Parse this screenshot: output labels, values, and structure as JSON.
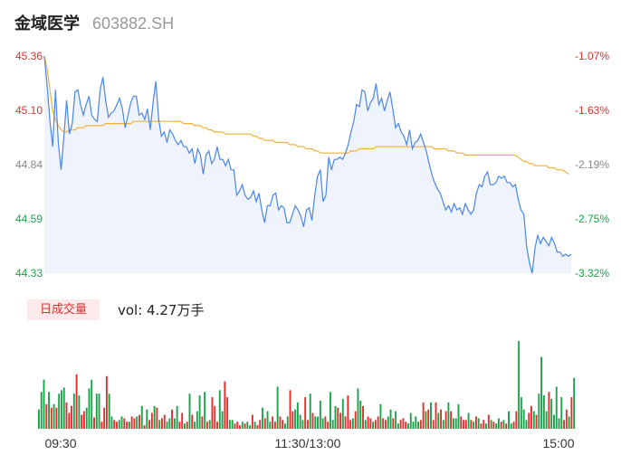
{
  "stock": {
    "name": "金域医学",
    "code": "603882.SH"
  },
  "volume": {
    "tab_label": "日成交量",
    "summary": "vol: 4.27万手"
  },
  "colors": {
    "price_line": "#4a86e8",
    "avg_line": "#f0b03c",
    "up": "#e0312e",
    "down": "#1aa34a",
    "fill": "#eef3fc"
  },
  "chart_data": [
    {
      "type": "line",
      "title": "",
      "y_left_ticks": [
        "45.36",
        "45.10",
        "44.84",
        "44.59",
        "44.33"
      ],
      "y_right_ticks": [
        "-1.07%",
        "-1.63%",
        "-2.19%",
        "-2.75%",
        "-3.32%"
      ],
      "x_ticks": [
        "09:30",
        "11:30/13:00",
        "15:00"
      ],
      "ylim": [
        44.33,
        45.36
      ],
      "series": [
        {
          "key": "price",
          "values": [
            45.36,
            45.22,
            45.05,
            44.93,
            45.2,
            44.95,
            44.82,
            44.98,
            45.15,
            44.99,
            45.04,
            45.19,
            45.2,
            45.13,
            45.08,
            45.13,
            45.17,
            45.08,
            45.06,
            45.05,
            45.2,
            45.26,
            45.15,
            45.07,
            45.09,
            45.1,
            45.13,
            45.16,
            45.11,
            45.02,
            45.08,
            45.14,
            45.17,
            45.17,
            45.08,
            45.09,
            45.06,
            45.11,
            45.01,
            45.14,
            45.24,
            45.06,
            44.98,
            45.0,
            44.95,
            45.01,
            44.99,
            44.96,
            44.94,
            44.96,
            44.93,
            44.93,
            44.9,
            44.92,
            44.85,
            44.92,
            44.89,
            44.8,
            44.89,
            44.91,
            44.85,
            44.87,
            44.93,
            44.87,
            44.87,
            44.84,
            44.87,
            44.82,
            44.82,
            44.7,
            44.72,
            44.75,
            44.7,
            44.68,
            44.69,
            44.72,
            44.67,
            44.71,
            44.63,
            44.57,
            44.65,
            44.65,
            44.7,
            44.71,
            44.63,
            44.65,
            44.64,
            44.57,
            44.57,
            44.61,
            44.65,
            44.63,
            44.6,
            44.55,
            44.63,
            44.64,
            44.58,
            44.7,
            44.79,
            44.82,
            44.67,
            44.7,
            44.88,
            44.82,
            44.87,
            44.87,
            44.88,
            44.87,
            44.9,
            44.94,
            45.0,
            45.05,
            45.13,
            45.12,
            45.2,
            45.19,
            45.1,
            45.14,
            45.16,
            45.23,
            45.13,
            45.16,
            45.1,
            45.15,
            45.19,
            45.11,
            45.02,
            45.04,
            45.0,
            44.98,
            44.94,
            45.01,
            44.92,
            44.95,
            44.96,
            44.99,
            44.95,
            44.91,
            44.85,
            44.8,
            44.76,
            44.73,
            44.71,
            44.67,
            44.63,
            44.65,
            44.62,
            44.66,
            44.63,
            44.64,
            44.61,
            44.66,
            44.63,
            44.61,
            44.63,
            44.71,
            44.75,
            44.74,
            44.79,
            44.81,
            44.75,
            44.75,
            44.76,
            44.79,
            44.78,
            44.79,
            44.76,
            44.76,
            44.74,
            44.75,
            44.68,
            44.63,
            44.61,
            44.46,
            44.38,
            44.33,
            44.45,
            44.51,
            44.47,
            44.5,
            44.48,
            44.46,
            44.5,
            44.47,
            44.43,
            44.43,
            44.41,
            44.42,
            44.41,
            44.42
          ]
        },
        {
          "key": "average",
          "values": [
            45.36,
            45.3,
            45.2,
            45.1,
            45.06,
            45.03,
            45.01,
            45.0,
            45.0,
            45.01,
            45.01,
            45.01,
            45.02,
            45.02,
            45.02,
            45.03,
            45.03,
            45.03,
            45.03,
            45.03,
            45.03,
            45.03,
            45.04,
            45.04,
            45.04,
            45.04,
            45.04,
            45.04,
            45.04,
            45.04,
            45.04,
            45.04,
            45.05,
            45.05,
            45.05,
            45.05,
            45.05,
            45.05,
            45.05,
            45.05,
            45.05,
            45.05,
            45.05,
            45.05,
            45.05,
            45.05,
            45.05,
            45.05,
            45.05,
            45.05,
            45.04,
            45.04,
            45.04,
            45.04,
            45.03,
            45.03,
            45.03,
            45.02,
            45.02,
            45.01,
            45.01,
            45.0,
            45.0,
            45.0,
            45.0,
            44.99,
            44.99,
            44.99,
            44.99,
            44.99,
            44.99,
            44.99,
            44.99,
            44.99,
            44.99,
            44.98,
            44.98,
            44.97,
            44.97,
            44.96,
            44.96,
            44.96,
            44.96,
            44.95,
            44.95,
            44.95,
            44.95,
            44.95,
            44.94,
            44.94,
            44.94,
            44.93,
            44.93,
            44.93,
            44.92,
            44.92,
            44.92,
            44.91,
            44.91,
            44.9,
            44.9,
            44.9,
            44.9,
            44.9,
            44.9,
            44.9,
            44.9,
            44.9,
            44.9,
            44.9,
            44.91,
            44.91,
            44.91,
            44.92,
            44.92,
            44.92,
            44.92,
            44.92,
            44.92,
            44.93,
            44.93,
            44.93,
            44.93,
            44.93,
            44.93,
            44.93,
            44.93,
            44.93,
            44.93,
            44.93,
            44.93,
            44.93,
            44.93,
            44.93,
            44.93,
            44.93,
            44.93,
            44.93,
            44.93,
            44.93,
            44.92,
            44.92,
            44.92,
            44.92,
            44.92,
            44.91,
            44.91,
            44.91,
            44.9,
            44.9,
            44.9,
            44.89,
            44.89,
            44.89,
            44.89,
            44.89,
            44.89,
            44.89,
            44.89,
            44.89,
            44.89,
            44.89,
            44.89,
            44.89,
            44.89,
            44.89,
            44.89,
            44.89,
            44.89,
            44.89,
            44.88,
            44.87,
            44.86,
            44.86,
            44.85,
            44.85,
            44.84,
            44.84,
            44.84,
            44.84,
            44.84,
            44.83,
            44.83,
            44.83,
            44.82,
            44.82,
            44.82,
            44.81,
            44.8
          ]
        }
      ]
    },
    {
      "type": "bar",
      "title": "",
      "values": [
        22,
        42,
        56,
        28,
        42,
        24,
        28,
        24,
        40,
        44,
        47,
        30,
        18,
        26,
        40,
        62,
        38,
        16,
        20,
        24,
        46,
        56,
        13,
        40,
        40,
        8,
        24,
        60,
        40,
        14,
        10,
        8,
        10,
        14,
        12,
        8,
        8,
        14,
        12,
        14,
        16,
        26,
        4,
        22,
        10,
        18,
        26,
        24,
        10,
        12,
        16,
        8,
        12,
        22,
        12,
        26,
        8,
        18,
        6,
        8,
        40,
        16,
        8,
        20,
        38,
        14,
        42,
        8,
        10,
        36,
        26,
        8,
        44,
        20,
        54,
        36,
        10,
        10,
        6,
        8,
        4,
        8,
        6,
        8,
        4,
        16,
        8,
        4,
        10,
        24,
        12,
        20,
        8,
        14,
        8,
        48,
        14,
        10,
        6,
        14,
        44,
        20,
        22,
        30,
        16,
        10,
        36,
        10,
        40,
        18,
        14,
        14,
        32,
        12,
        14,
        8,
        42,
        10,
        26,
        24,
        18,
        34,
        14,
        38,
        10,
        12,
        20,
        46,
        32,
        26,
        10,
        14,
        12,
        8,
        10,
        14,
        28,
        12,
        10,
        14,
        22,
        12,
        20,
        6,
        10,
        12,
        8,
        6,
        18,
        8,
        14,
        8,
        10,
        30,
        20,
        22,
        30,
        10,
        30,
        18,
        22,
        10,
        20,
        30,
        20,
        12,
        12,
        28,
        14,
        10,
        10,
        18,
        10,
        8,
        14,
        12,
        6,
        10,
        6,
        16,
        10,
        8,
        6,
        12,
        8,
        10,
        6,
        20,
        6,
        8,
        20,
        100,
        36,
        22,
        10,
        18,
        26,
        20,
        16,
        40,
        82,
        38,
        20,
        42,
        34,
        16,
        48,
        12,
        36,
        10,
        22,
        14,
        36,
        58
      ],
      "colors": [
        "g",
        "g",
        "g",
        "r",
        "g",
        "r",
        "g",
        "r",
        "g",
        "g",
        "g",
        "r",
        "r",
        "r",
        "g",
        "r",
        "g",
        "r",
        "r",
        "g",
        "g",
        "g",
        "r",
        "g",
        "g",
        "r",
        "r",
        "r",
        "g",
        "g",
        "r",
        "r",
        "g",
        "g",
        "r",
        "r",
        "g",
        "r",
        "r",
        "g",
        "r",
        "g",
        "r",
        "g",
        "r",
        "r",
        "g",
        "r",
        "g",
        "r",
        "r",
        "g",
        "g",
        "r",
        "g",
        "g",
        "r",
        "r",
        "g",
        "r",
        "g",
        "r",
        "g",
        "g",
        "g",
        "r",
        "g",
        "r",
        "g",
        "r",
        "r",
        "r",
        "g",
        "g",
        "r",
        "r",
        "g",
        "g",
        "r",
        "r",
        "r",
        "g",
        "r",
        "g",
        "g",
        "r",
        "g",
        "r",
        "r",
        "g",
        "r",
        "g",
        "g",
        "r",
        "r",
        "g",
        "r",
        "r",
        "g",
        "g",
        "r",
        "r",
        "g",
        "g",
        "g",
        "g",
        "r",
        "r",
        "g",
        "r",
        "g",
        "g",
        "g",
        "g",
        "r",
        "r",
        "g",
        "g",
        "g",
        "r",
        "r",
        "g",
        "r",
        "r",
        "r",
        "g",
        "r",
        "g",
        "g",
        "r",
        "g",
        "r",
        "r",
        "g",
        "r",
        "r",
        "g",
        "r",
        "r",
        "g",
        "g",
        "r",
        "g",
        "g",
        "r",
        "r",
        "r",
        "g",
        "g",
        "g",
        "g",
        "g",
        "r",
        "r",
        "g",
        "r",
        "g",
        "r",
        "r",
        "g",
        "r",
        "g",
        "r",
        "g",
        "r",
        "g",
        "g",
        "g",
        "r",
        "r",
        "r",
        "g",
        "r",
        "g",
        "r",
        "g",
        "r",
        "r",
        "g",
        "r",
        "g",
        "r",
        "g",
        "g",
        "r",
        "g",
        "r",
        "g",
        "g",
        "r",
        "r",
        "g",
        "g",
        "g",
        "g",
        "r",
        "r",
        "g",
        "r",
        "g",
        "g",
        "g",
        "g",
        "r",
        "g",
        "g",
        "g",
        "g",
        "g",
        "r",
        "r",
        "g",
        "r",
        "g",
        "g",
        "g",
        "g",
        "g"
      ]
    }
  ]
}
